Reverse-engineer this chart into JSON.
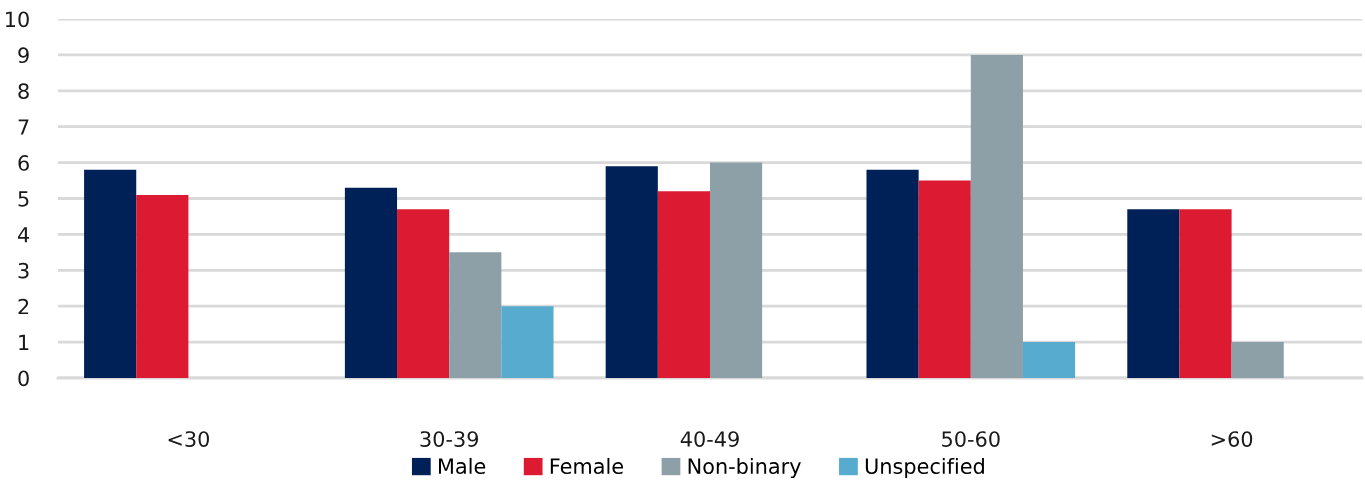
{
  "chart_data": {
    "type": "bar",
    "categories": [
      "<30",
      "30-39",
      "40-49",
      "50-60",
      ">60"
    ],
    "series": [
      {
        "name": "Male",
        "color": "#002157",
        "values": [
          5.8,
          5.3,
          5.9,
          5.8,
          4.7
        ]
      },
      {
        "name": "Female",
        "color": "#dc1a31",
        "values": [
          5.1,
          4.7,
          5.2,
          5.5,
          4.7
        ]
      },
      {
        "name": "Non-binary",
        "color": "#8da0a8",
        "values": [
          null,
          3.5,
          6.0,
          9.0,
          1.0
        ]
      },
      {
        "name": "Unspecified",
        "color": "#57abcf",
        "values": [
          null,
          2.0,
          null,
          1.0,
          null
        ]
      }
    ],
    "ylim": [
      0,
      10
    ],
    "yticks": [
      0,
      1,
      2,
      3,
      4,
      5,
      6,
      7,
      8,
      9,
      10
    ],
    "grid": "y",
    "legend": "bottom"
  }
}
